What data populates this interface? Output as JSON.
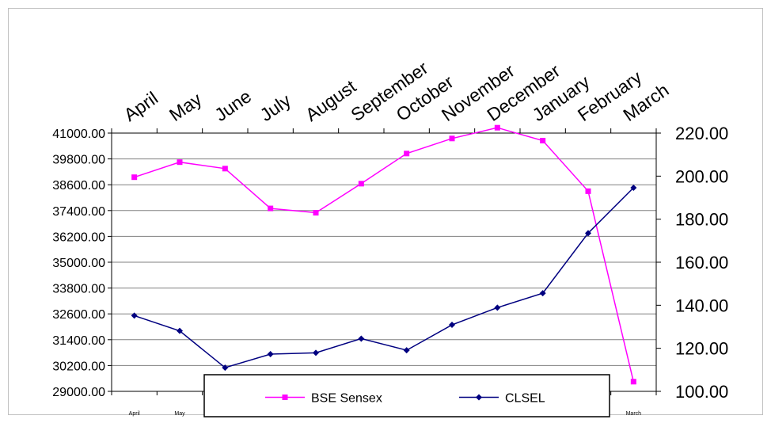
{
  "chart_data": {
    "type": "line",
    "title": "",
    "categories": [
      "April",
      "May",
      "June",
      "July",
      "August",
      "September",
      "October",
      "November",
      "December",
      "January",
      "February",
      "March"
    ],
    "bottom_tick_labels": [
      "April",
      "May",
      "",
      "",
      "",
      "",
      "",
      "",
      "",
      "",
      "",
      "March"
    ],
    "series": [
      {
        "name": "BSE Sensex",
        "axis": "left",
        "color": "#ff00ff",
        "marker": "square",
        "values": [
          38950,
          39650,
          39350,
          37500,
          37300,
          38650,
          40050,
          40750,
          41250,
          40650,
          38300,
          29450
        ]
      },
      {
        "name": "CLSEL",
        "axis": "right",
        "color": "#000080",
        "marker": "diamond",
        "values": [
          135.2,
          128.1,
          111.0,
          117.3,
          117.9,
          124.5,
          119.1,
          130.9,
          138.9,
          145.6,
          173.5,
          194.6
        ]
      }
    ],
    "y_left": {
      "range": [
        29000,
        41000
      ],
      "tick_labels": [
        "41000.00",
        "39800.00",
        "38600.00",
        "37400.00",
        "36200.00",
        "35000.00",
        "33800.00",
        "32600.00",
        "31400.00",
        "30200.00",
        "29000.00"
      ]
    },
    "y_right": {
      "range": [
        100,
        220
      ],
      "tick_labels": [
        "220.00",
        "200.00",
        "180.00",
        "160.00",
        "140.00",
        "120.00",
        "100.00"
      ]
    },
    "grid": true,
    "legend_position": "bottom-center",
    "colors": {
      "border": "#c0c0c0",
      "grid": "#808080",
      "axis": "#000000",
      "legend_border": "#000000"
    }
  }
}
